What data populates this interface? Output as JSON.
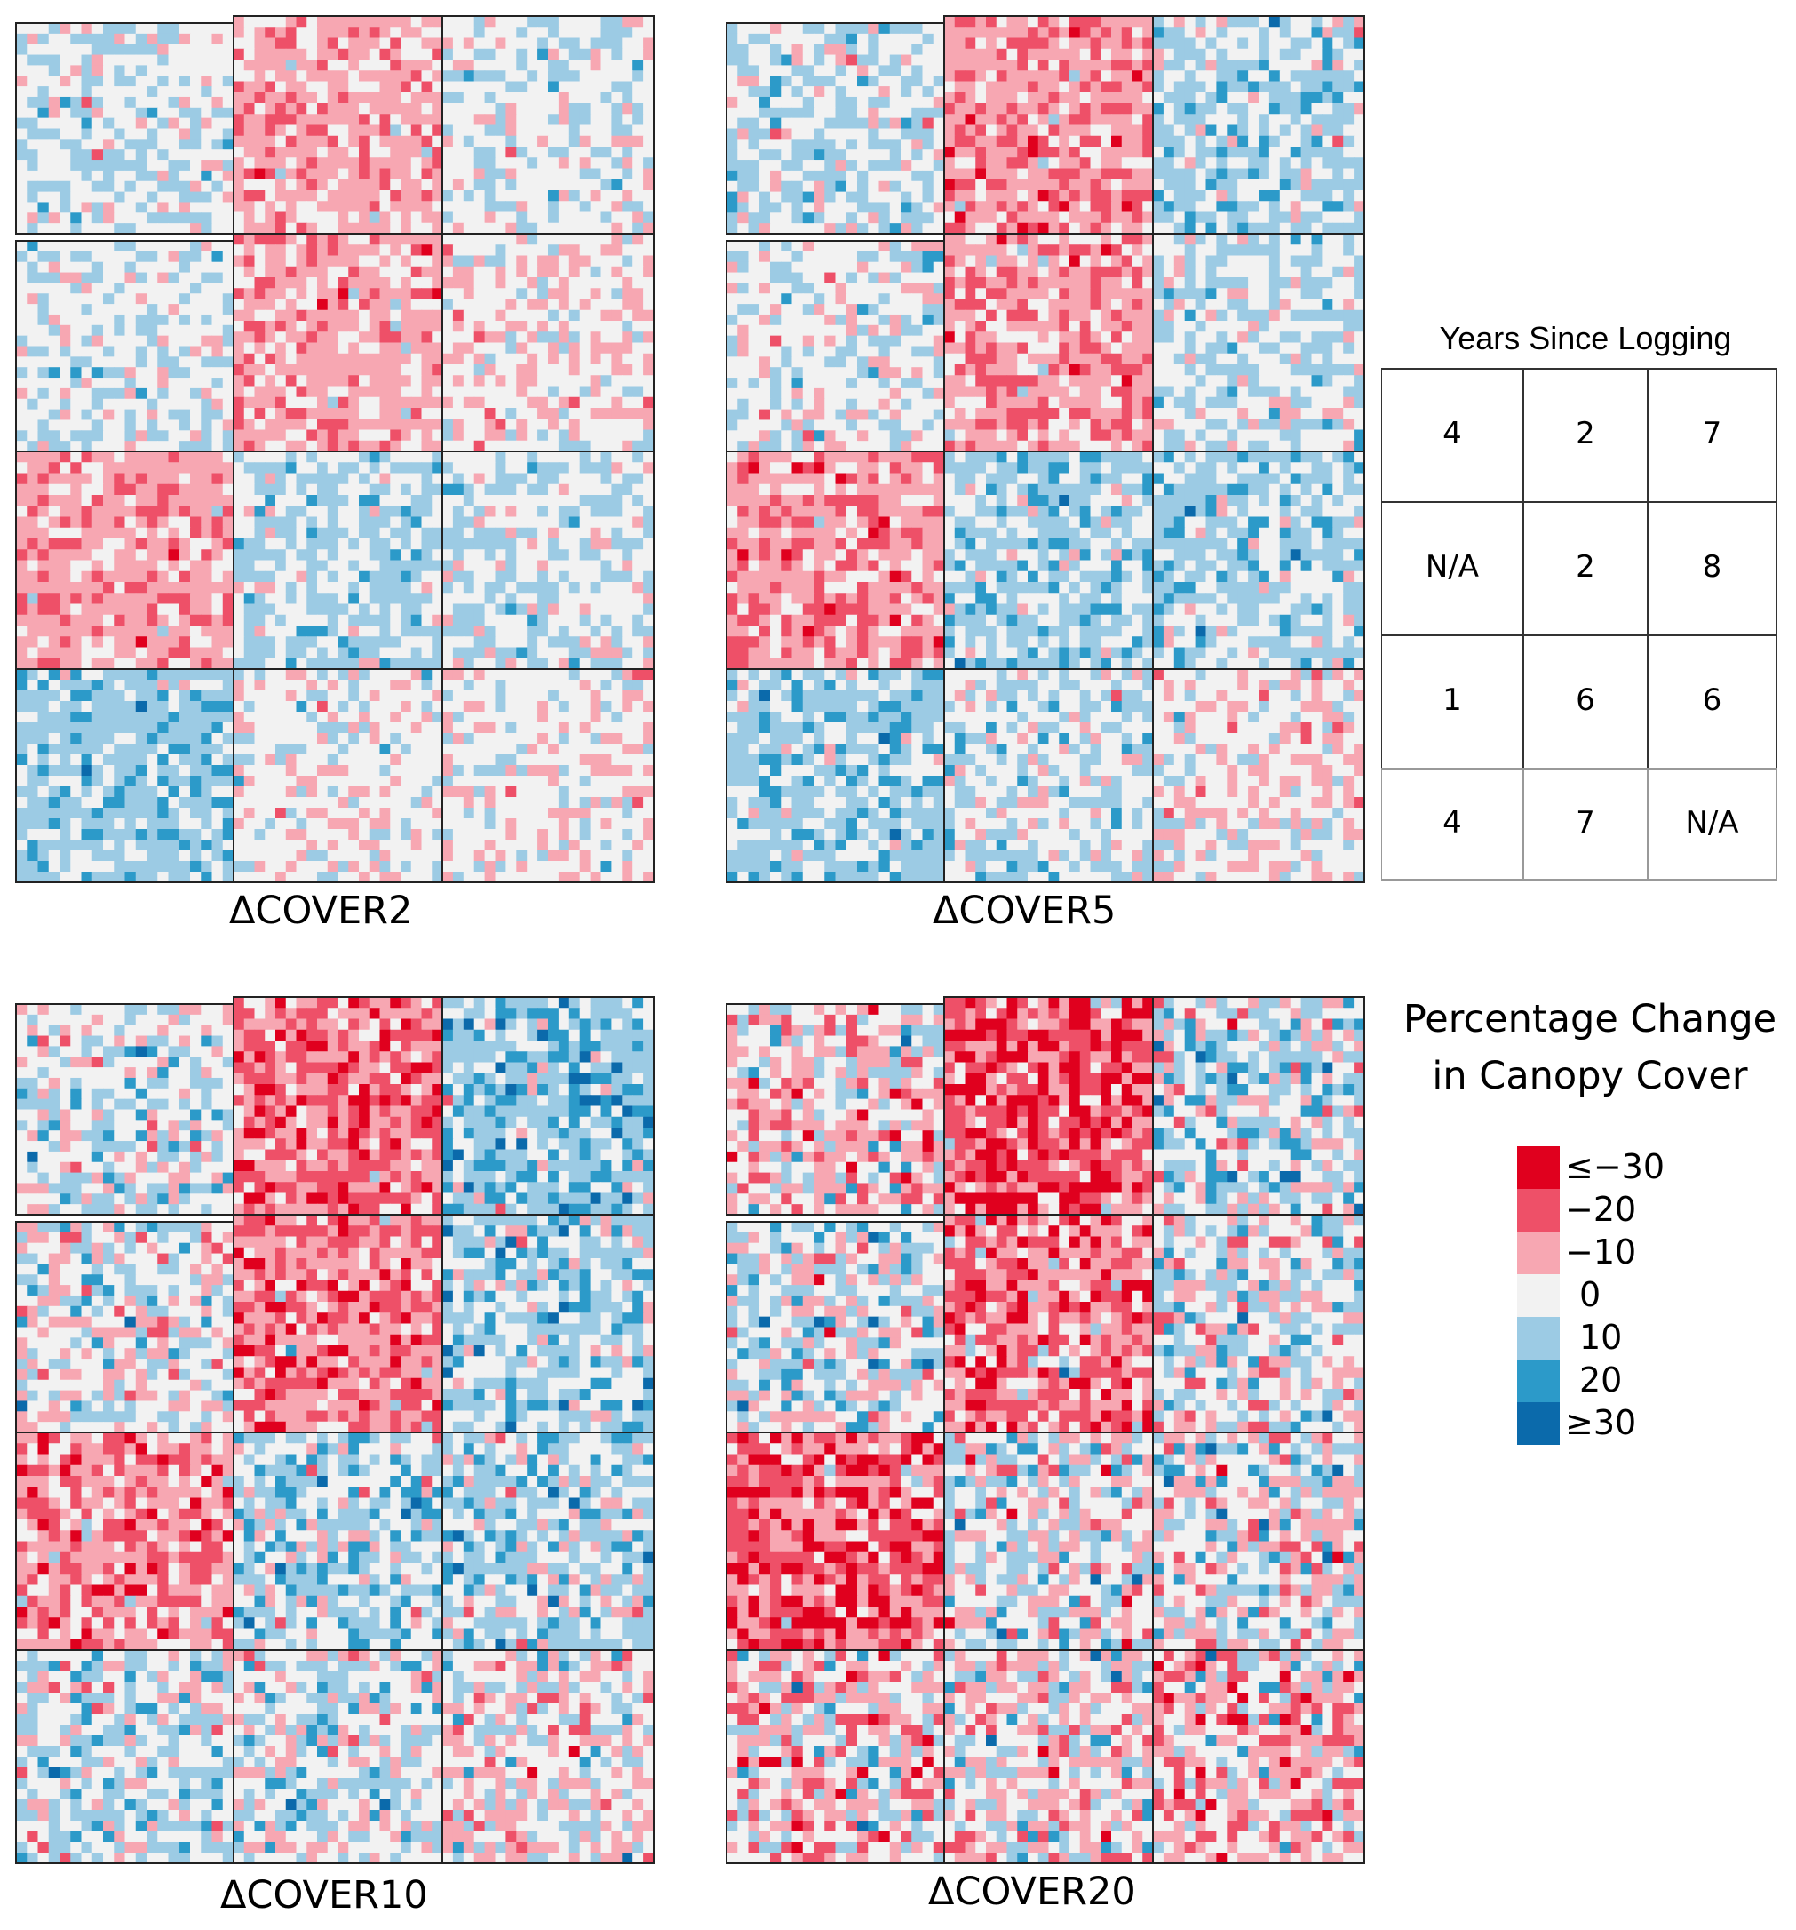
{
  "chart_data": {
    "type": "heatmap",
    "title": "Percentage Change in Canopy Cover",
    "legend": {
      "title_line1": "Percentage Change",
      "title_line2": "in Canopy Cover",
      "position": "right",
      "bins": [
        {
          "label": "≤−30",
          "value": -30,
          "color": "#e0001e"
        },
        {
          "label": "−20",
          "value": -20,
          "color": "#ee5068"
        },
        {
          "label": "−10",
          "value": -10,
          "color": "#f7a7b2"
        },
        {
          "label": "0",
          "value": 0,
          "color": "#f2f2f2"
        },
        {
          "label": "10",
          "value": 10,
          "color": "#9ccbe4"
        },
        {
          "label": "20",
          "value": 20,
          "color": "#2c9ac9"
        },
        {
          "label": "≥30",
          "value": 30,
          "color": "#0b6aab"
        }
      ]
    },
    "lot_grid": {
      "rows": 4,
      "cols": 3,
      "cells_per_lot": 20
    },
    "panels": [
      {
        "label": "ΔCOVER2",
        "lot_mean_change": [
          [
            3,
            -9,
            2
          ],
          [
            2,
            -9,
            -2
          ],
          [
            -10,
            6,
            4
          ],
          [
            9,
            0,
            -1
          ]
        ],
        "variability": 6
      },
      {
        "label": "ΔCOVER5",
        "lot_mean_change": [
          [
            4,
            -12,
            6
          ],
          [
            1,
            -11,
            4
          ],
          [
            -12,
            8,
            7
          ],
          [
            9,
            3,
            -2
          ]
        ],
        "variability": 7
      },
      {
        "label": "ΔCOVER10",
        "lot_mean_change": [
          [
            2,
            -16,
            10
          ],
          [
            0,
            -14,
            7
          ],
          [
            -12,
            6,
            6
          ],
          [
            4,
            2,
            -2
          ]
        ],
        "variability": 9
      },
      {
        "label": "ΔCOVER20",
        "lot_mean_change": [
          [
            -5,
            -20,
            3
          ],
          [
            2,
            -15,
            1
          ],
          [
            -18,
            1,
            0
          ],
          [
            -4,
            -3,
            -6
          ]
        ],
        "variability": 11
      }
    ]
  },
  "lot_key": {
    "title": "Years Since Logging",
    "values": [
      [
        "4",
        "2",
        "7"
      ],
      [
        "N/A",
        "2",
        "8"
      ],
      [
        "1",
        "6",
        "6"
      ],
      [
        "4",
        "7",
        "N/A"
      ]
    ]
  }
}
